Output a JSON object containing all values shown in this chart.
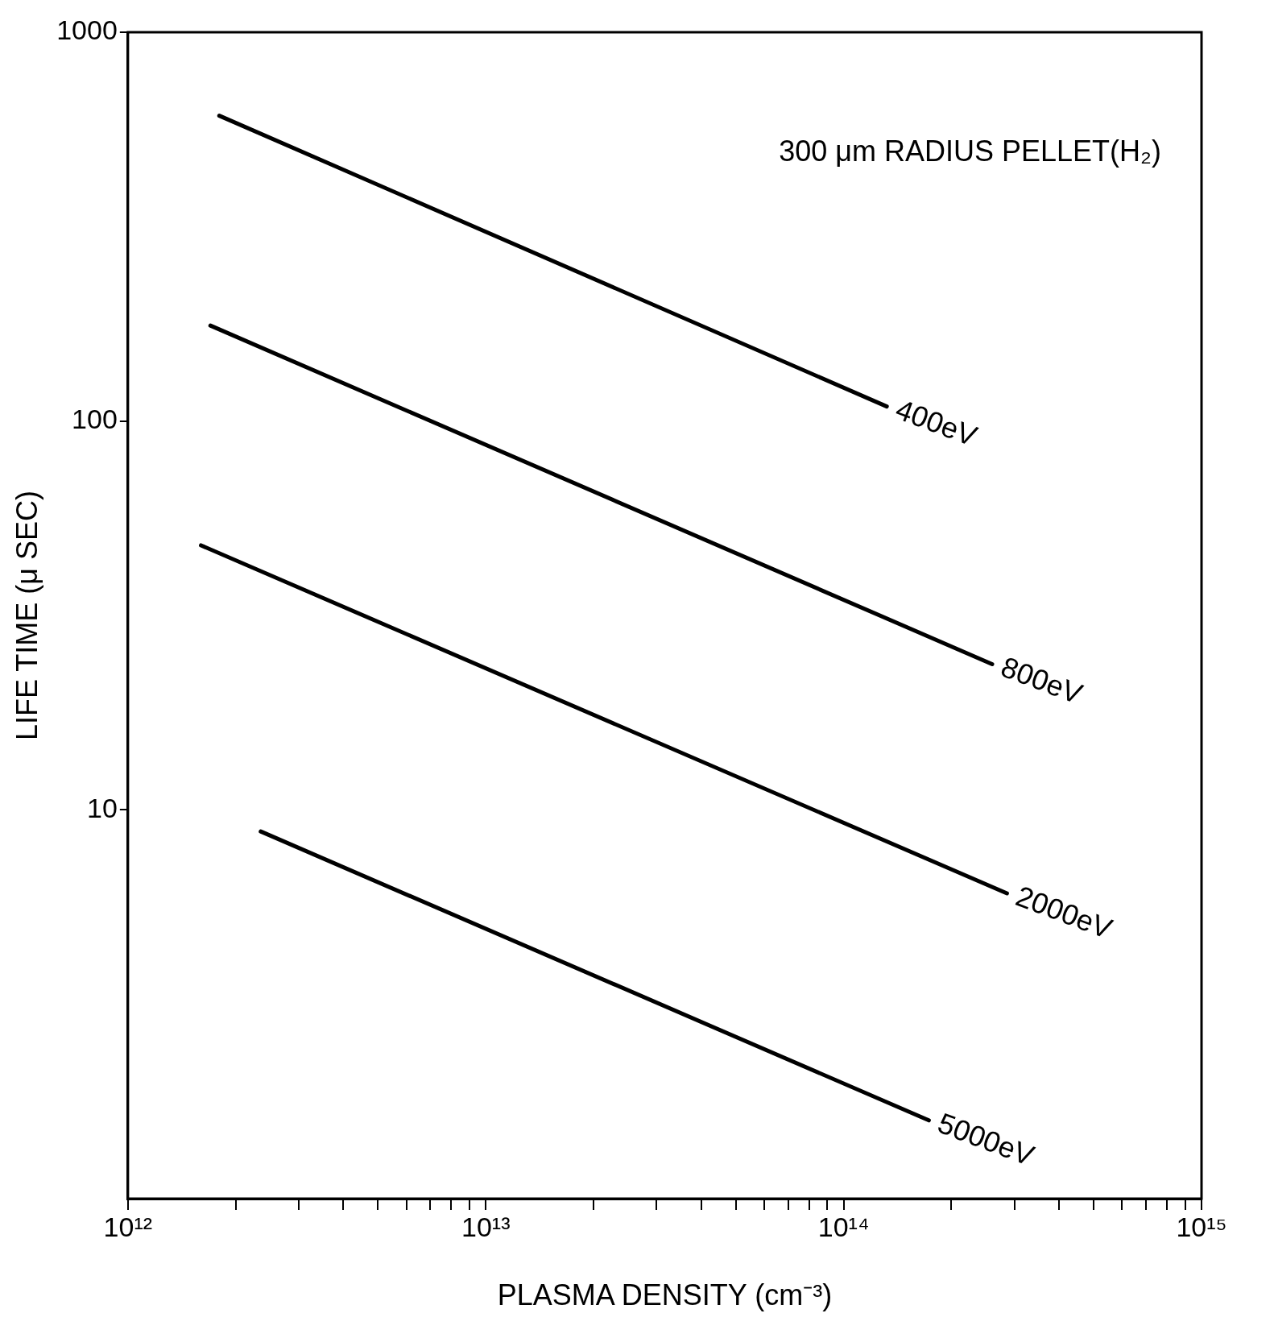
{
  "chart_data": {
    "type": "line",
    "xlabel": "PLASMA DENSITY (cm⁻³)",
    "ylabel": "LIFE TIME (μ SEC)",
    "log": "xy",
    "grid": false,
    "legend": false,
    "marker": "none",
    "line_style": "solid",
    "xlim": [
      1000000000000.0,
      1000000000000000.0
    ],
    "xticks": [
      {
        "value": 1000000000000.0,
        "label": "10¹²"
      },
      {
        "value": 2000000000000.0,
        "label": null
      },
      {
        "value": 3000000000000.0,
        "label": null
      },
      {
        "value": 4000000000000.0,
        "label": null
      },
      {
        "value": 5000000000000.0,
        "label": null
      },
      {
        "value": 6000000000000.0,
        "label": null
      },
      {
        "value": 7000000000000.0,
        "label": null
      },
      {
        "value": 8000000000000.0,
        "label": null
      },
      {
        "value": 9000000000000.0,
        "label": null
      },
      {
        "value": 10000000000000.0,
        "label": "10¹³"
      },
      {
        "value": 20000000000000.0,
        "label": null
      },
      {
        "value": 30000000000000.0,
        "label": null
      },
      {
        "value": 40000000000000.0,
        "label": null
      },
      {
        "value": 50000000000000.0,
        "label": null
      },
      {
        "value": 60000000000000.0,
        "label": null
      },
      {
        "value": 70000000000000.0,
        "label": null
      },
      {
        "value": 80000000000000.0,
        "label": null
      },
      {
        "value": 90000000000000.0,
        "label": null
      },
      {
        "value": 100000000000000.0,
        "label": "10¹⁴"
      },
      {
        "value": 200000000000000.0,
        "label": null
      },
      {
        "value": 300000000000000.0,
        "label": null
      },
      {
        "value": 400000000000000.0,
        "label": null
      },
      {
        "value": 500000000000000.0,
        "label": null
      },
      {
        "value": 600000000000000.0,
        "label": null
      },
      {
        "value": 700000000000000.0,
        "label": null
      },
      {
        "value": 800000000000000.0,
        "label": null
      },
      {
        "value": 900000000000000.0,
        "label": null
      },
      {
        "value": 1000000000000000.0,
        "label": "10¹⁵"
      }
    ],
    "ylim": [
      1,
      1000
    ],
    "yticks": [
      10,
      100,
      1000
    ],
    "series": [
      {
        "color": "#000000",
        "x": [
          1800000000000.0,
          132000000000000.0
        ],
        "values": [
          610,
          109
        ]
      },
      {
        "color": "#000000",
        "x": [
          1700000000000.0,
          260000000000000.0
        ],
        "values": [
          176,
          23.7
        ]
      },
      {
        "color": "#000000",
        "x": [
          1600000000000.0,
          286000000000000.0
        ],
        "values": [
          47.9,
          6.1
        ]
      },
      {
        "color": "#000000",
        "x": [
          2350000000000.0,
          173000000000000.0
        ],
        "values": [
          8.8,
          1.59
        ]
      }
    ],
    "annotations": [
      "300 μm RADIUS PELLET(H₂)",
      {
        "text": "400eV",
        "x": 132000000000000.0,
        "y": 109
      },
      {
        "text": "800eV",
        "x": 260000000000000.0,
        "y": 23.7
      },
      {
        "text": "2000eV",
        "x": 286000000000000.0,
        "y": 6.1
      },
      {
        "text": "5000eV",
        "x": 173000000000000.0,
        "y": 1.59
      }
    ]
  }
}
